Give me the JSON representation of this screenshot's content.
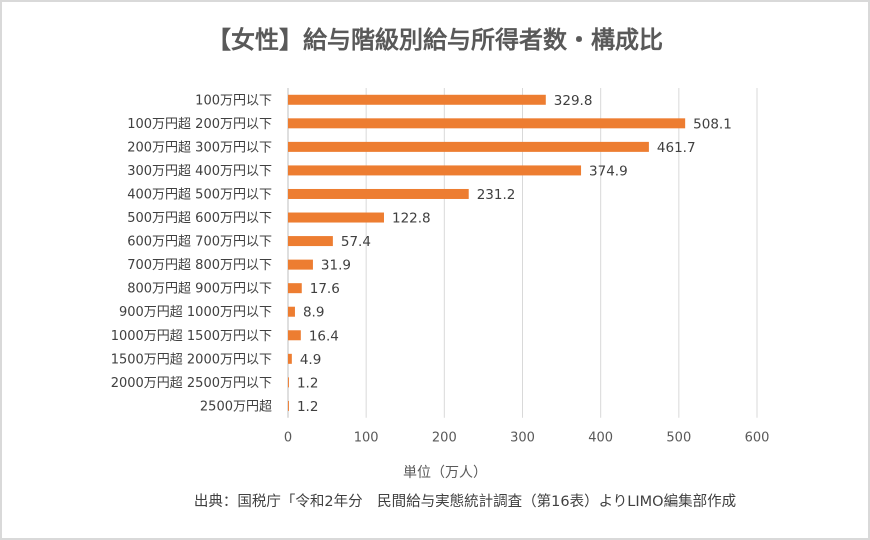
{
  "chart_data": {
    "type": "bar",
    "orientation": "horizontal",
    "title": "【女性】給与階級別給与所得者数・構成比",
    "xlabel": "単位（万人）",
    "source": "出典：国税庁「令和2年分　民間給与実態統計調査（第16表）よりLIMO編集部作成",
    "xlim": [
      0,
      600
    ],
    "xticks": [
      "0",
      "100",
      "200",
      "300",
      "400",
      "500",
      "600"
    ],
    "grid": "vertical",
    "bar_color": "#ed7d31",
    "categories": [
      "100万円以下",
      "100万円超 200万円以下",
      "200万円超 300万円以下",
      "300万円超 400万円以下",
      "400万円超 500万円以下",
      "500万円超 600万円以下",
      "600万円超 700万円以下",
      "700万円超 800万円以下",
      "800万円超 900万円以下",
      "900万円超 1000万円以下",
      "1000万円超 1500万円以下",
      "1500万円超 2000万円以下",
      "2000万円超 2500万円以下",
      "2500万円超"
    ],
    "values": [
      329.8,
      508.1,
      461.7,
      374.9,
      231.2,
      122.8,
      57.4,
      31.9,
      17.6,
      8.9,
      16.4,
      4.9,
      1.2,
      1.2
    ],
    "value_labels": [
      "329.8",
      "508.1",
      "461.7",
      "374.9",
      "231.2",
      "122.8",
      "57.4",
      "31.9",
      "17.6",
      "8.9",
      "16.4",
      "4.9",
      "1.2",
      "1.2"
    ]
  }
}
